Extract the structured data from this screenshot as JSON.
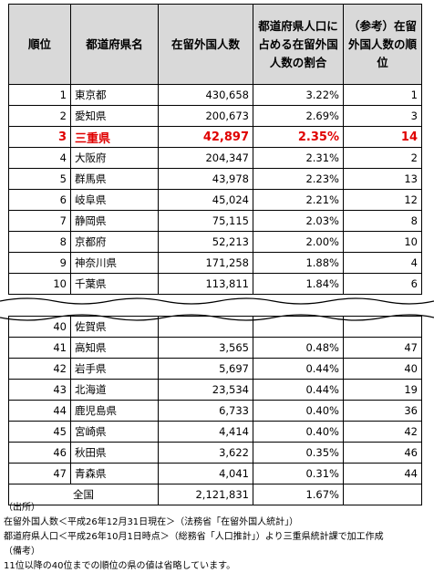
{
  "headers": {
    "rank": "順位",
    "pref": "都道府県名",
    "pop": "在留外国人数",
    "share": "都道府県人口に占める在留外国人数の割合",
    "ref": "（参考）在留外国人数の順位"
  },
  "rows_top": [
    {
      "rank": "1",
      "pref": "東京都",
      "pop": "430,658",
      "share": "3.22%",
      "ref": "1"
    },
    {
      "rank": "2",
      "pref": "愛知県",
      "pop": "200,673",
      "share": "2.69%",
      "ref": "3"
    },
    {
      "rank": "3",
      "pref": "三重県",
      "pop": "42,897",
      "share": "2.35%",
      "ref": "14"
    },
    {
      "rank": "4",
      "pref": "大阪府",
      "pop": "204,347",
      "share": "2.31%",
      "ref": "2"
    },
    {
      "rank": "5",
      "pref": "群馬県",
      "pop": "43,978",
      "share": "2.23%",
      "ref": "13"
    },
    {
      "rank": "6",
      "pref": "岐阜県",
      "pop": "45,024",
      "share": "2.21%",
      "ref": "12"
    },
    {
      "rank": "7",
      "pref": "静岡県",
      "pop": "75,115",
      "share": "2.03%",
      "ref": "8"
    },
    {
      "rank": "8",
      "pref": "京都府",
      "pop": "52,213",
      "share": "2.00%",
      "ref": "10"
    },
    {
      "rank": "9",
      "pref": "神奈川県",
      "pop": "171,258",
      "share": "1.88%",
      "ref": "4"
    },
    {
      "rank": "10",
      "pref": "千葉県",
      "pop": "113,811",
      "share": "1.84%",
      "ref": "6"
    }
  ],
  "rows_bottom": [
    {
      "rank": "40",
      "pref": "佐賀県",
      "pop": "",
      "share": "",
      "ref": ""
    },
    {
      "rank": "41",
      "pref": "高知県",
      "pop": "3,565",
      "share": "0.48%",
      "ref": "47"
    },
    {
      "rank": "42",
      "pref": "岩手県",
      "pop": "5,697",
      "share": "0.44%",
      "ref": "40"
    },
    {
      "rank": "43",
      "pref": "北海道",
      "pop": "23,534",
      "share": "0.44%",
      "ref": "19"
    },
    {
      "rank": "44",
      "pref": "鹿児島県",
      "pop": "6,733",
      "share": "0.40%",
      "ref": "36"
    },
    {
      "rank": "45",
      "pref": "宮崎県",
      "pop": "4,414",
      "share": "0.40%",
      "ref": "42"
    },
    {
      "rank": "46",
      "pref": "秋田県",
      "pop": "3,622",
      "share": "0.35%",
      "ref": "46"
    },
    {
      "rank": "47",
      "pref": "青森県",
      "pop": "4,041",
      "share": "0.31%",
      "ref": "44"
    }
  ],
  "total": {
    "label": "全国",
    "pop": "2,121,831",
    "share": "1.67%"
  },
  "notes": [
    "（出所）",
    "在留外国人数＜平成26年12月31日現在＞（法務省「在留外国人統計」）",
    "都道府県人口＜平成26年10月1日時点＞（総務省「人口推計」）より三重県統計課で加工作成",
    "（備考）",
    "11位以降の40位までの順位の県の値は省略しています。"
  ],
  "highlight_color": "#e00000",
  "header_bg": "#d9d9d9"
}
